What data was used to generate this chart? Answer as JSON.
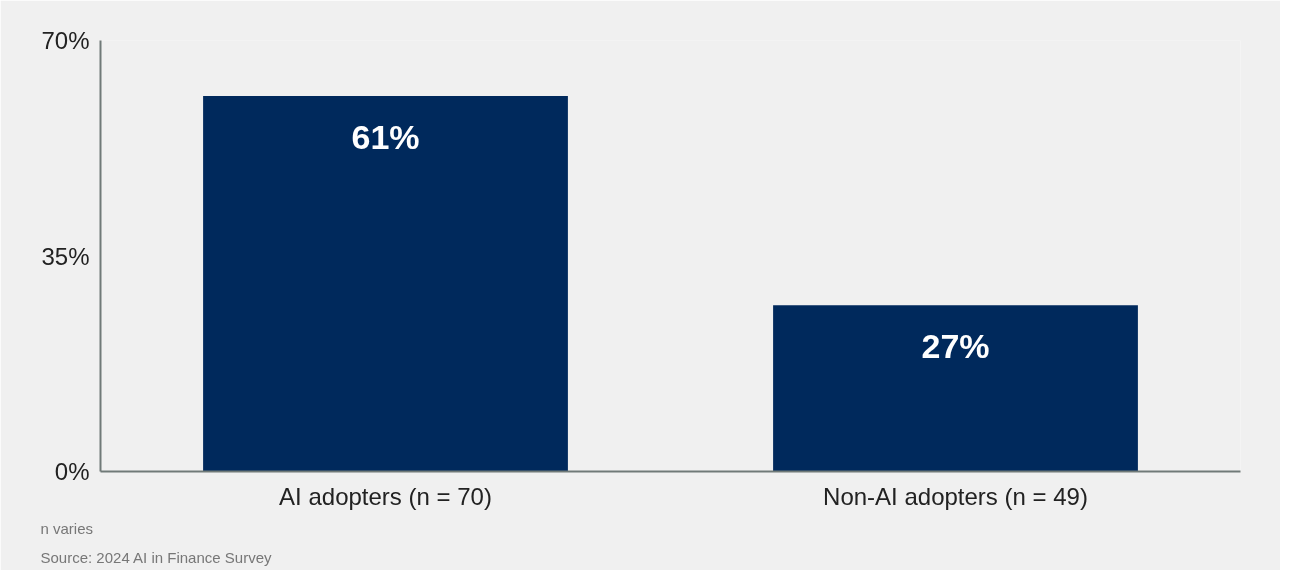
{
  "chart_data": {
    "type": "bar",
    "categories": [
      "AI adopters (n = 70)",
      "Non-AI adopters (n = 49)"
    ],
    "values": [
      61,
      27
    ],
    "color": "#00295c",
    "value_labels": [
      "61%",
      "27%"
    ],
    "ylim": [
      0,
      70
    ],
    "yticks": [
      {
        "value": 0,
        "label": "0%"
      },
      {
        "value": 35,
        "label": "35%"
      },
      {
        "value": 70,
        "label": "70%"
      }
    ],
    "grid": false,
    "annotations": [
      "n varies",
      "Source: 2024 AI in Finance Survey"
    ]
  }
}
